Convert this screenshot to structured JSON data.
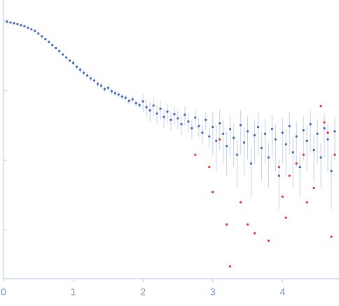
{
  "chart_data": {
    "type": "scatter",
    "xlim": [
      0,
      4.81
    ],
    "xticks": [
      0,
      1,
      2,
      3,
      4
    ],
    "ylim": [
      0.0002,
      2
    ],
    "yticks": [
      0.001,
      0.01,
      0.1,
      1
    ],
    "ylog": true,
    "series": [
      {
        "color": "#3a64b6",
        "error_color": "#c3d1ea",
        "x": [
          0.05,
          0.1,
          0.15,
          0.2,
          0.25,
          0.3,
          0.35,
          0.4,
          0.45,
          0.5,
          0.55,
          0.6,
          0.65,
          0.7,
          0.75,
          0.8,
          0.85,
          0.9,
          0.95,
          1.0,
          1.05,
          1.1,
          1.15,
          1.2,
          1.25,
          1.3,
          1.35,
          1.4,
          1.45,
          1.5,
          1.55,
          1.6,
          1.65,
          1.7,
          1.75,
          1.8,
          1.85,
          1.9,
          1.95,
          2.0,
          2.05,
          2.1,
          2.15,
          2.2,
          2.25,
          2.3,
          2.35,
          2.4,
          2.45,
          2.5,
          2.55,
          2.6,
          2.65,
          2.7,
          2.75,
          2.8,
          2.85,
          2.9,
          2.95,
          3.0,
          3.05,
          3.1,
          3.15,
          3.2,
          3.25,
          3.3,
          3.35,
          3.4,
          3.45,
          3.5,
          3.55,
          3.6,
          3.65,
          3.7,
          3.75,
          3.8,
          3.85,
          3.9,
          3.95,
          4.0,
          4.05,
          4.1,
          4.15,
          4.2,
          4.25,
          4.3,
          4.35,
          4.4,
          4.45,
          4.5,
          4.55,
          4.6,
          4.65,
          4.7,
          4.75
        ],
        "values": [
          0.98,
          0.95,
          0.93,
          0.9,
          0.87,
          0.84,
          0.8,
          0.76,
          0.72,
          0.66,
          0.6,
          0.55,
          0.5,
          0.45,
          0.41,
          0.37,
          0.33,
          0.3,
          0.27,
          0.25,
          0.22,
          0.2,
          0.18,
          0.165,
          0.15,
          0.14,
          0.125,
          0.118,
          0.105,
          0.11,
          0.098,
          0.092,
          0.088,
          0.082,
          0.079,
          0.071,
          0.075,
          0.066,
          0.062,
          0.07,
          0.058,
          0.052,
          0.061,
          0.047,
          0.055,
          0.042,
          0.05,
          0.038,
          0.046,
          0.04,
          0.033,
          0.045,
          0.036,
          0.029,
          0.041,
          0.031,
          0.025,
          0.038,
          0.022,
          0.03,
          0.019,
          0.034,
          0.024,
          0.016,
          0.028,
          0.021,
          0.012,
          0.032,
          0.018,
          0.026,
          0.009,
          0.023,
          0.03,
          0.015,
          0.024,
          0.011,
          0.028,
          0.02,
          0.006,
          0.025,
          0.017,
          0.031,
          0.013,
          0.022,
          0.008,
          0.027,
          0.019,
          0.033,
          0.014,
          0.024,
          0.011,
          0.029,
          0.02,
          0.007,
          0.026
        ],
        "errors": [
          0.1,
          0.029,
          0.028,
          0.027,
          0.026,
          0.025,
          0.024,
          0.023,
          0.022,
          0.02,
          0.018,
          0.017,
          0.015,
          0.014,
          0.012,
          0.011,
          0.01,
          0.009,
          0.008,
          0.025,
          0.022,
          0.02,
          0.018,
          0.017,
          0.015,
          0.014,
          0.013,
          0.012,
          0.011,
          0.011,
          0.01,
          0.009,
          0.009,
          0.008,
          0.008,
          0.007,
          0.008,
          0.007,
          0.006,
          0.021,
          0.017,
          0.016,
          0.018,
          0.014,
          0.017,
          0.013,
          0.015,
          0.011,
          0.014,
          0.012,
          0.01,
          0.014,
          0.011,
          0.009,
          0.012,
          0.009,
          0.008,
          0.011,
          0.007,
          0.018,
          0.012,
          0.02,
          0.015,
          0.01,
          0.017,
          0.013,
          0.008,
          0.02,
          0.012,
          0.016,
          0.006,
          0.014,
          0.018,
          0.01,
          0.015,
          0.007,
          0.017,
          0.013,
          0.004,
          0.016,
          0.011,
          0.019,
          0.009,
          0.014,
          0.005,
          0.017,
          0.012,
          0.02,
          0.009,
          0.015,
          0.007,
          0.018,
          0.013,
          0.005,
          0.016
        ]
      },
      {
        "color": "#e03030",
        "x": [
          2.75,
          2.95,
          3.0,
          3.1,
          3.2,
          3.25,
          3.4,
          3.5,
          3.6,
          3.8,
          3.95,
          4.0,
          4.05,
          4.1,
          4.2,
          4.3,
          4.35,
          4.45,
          4.55,
          4.6,
          4.65,
          4.7,
          4.75
        ],
        "values": [
          0.012,
          0.008,
          0.0035,
          0.02,
          0.0012,
          0.0003,
          0.0025,
          0.0012,
          0.0009,
          0.0007,
          0.008,
          0.003,
          0.0015,
          0.006,
          0.009,
          0.012,
          0.0025,
          0.004,
          0.06,
          0.035,
          0.025,
          0.0008,
          0.012
        ]
      }
    ]
  }
}
